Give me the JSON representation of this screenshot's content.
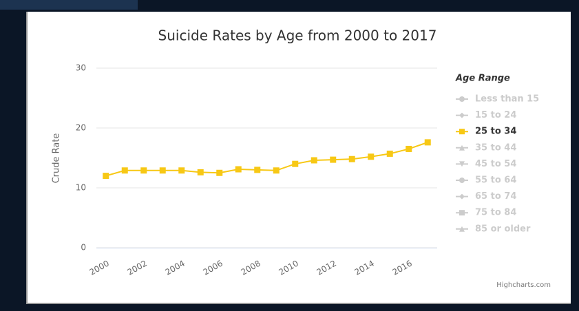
{
  "chart_data": {
    "type": "line",
    "title": "Suicide Rates by Age from 2000 to 2017",
    "y_label": "Crude Rate",
    "credits": "Highcharts.com",
    "x": [
      2000,
      2001,
      2002,
      2003,
      2004,
      2005,
      2006,
      2007,
      2008,
      2009,
      2010,
      2011,
      2012,
      2013,
      2014,
      2015,
      2016,
      2017
    ],
    "xlim": [
      1999.5,
      2017.5
    ],
    "xticks": [
      2000,
      2002,
      2004,
      2006,
      2008,
      2010,
      2012,
      2014,
      2016
    ],
    "ylim": [
      0,
      30
    ],
    "yticks": [
      0,
      10,
      20,
      30
    ],
    "grid": true,
    "legend": {
      "title": "Age Range",
      "position": "right"
    },
    "series": [
      {
        "name": "Less than 15",
        "color": "#cccccc",
        "marker": "circle",
        "visible": false
      },
      {
        "name": "15 to 24",
        "color": "#cccccc",
        "marker": "diamond",
        "visible": false
      },
      {
        "name": "25 to 34",
        "color": "#f7c815",
        "marker": "square",
        "visible": true,
        "values": [
          12.0,
          12.9,
          12.9,
          12.9,
          12.9,
          12.6,
          12.5,
          13.1,
          13.0,
          12.9,
          14.0,
          14.6,
          14.7,
          14.8,
          15.2,
          15.7,
          16.5,
          17.6
        ]
      },
      {
        "name": "35 to 44",
        "color": "#cccccc",
        "marker": "triangle",
        "visible": false
      },
      {
        "name": "45 to 54",
        "color": "#cccccc",
        "marker": "triangle-down",
        "visible": false
      },
      {
        "name": "55 to 64",
        "color": "#cccccc",
        "marker": "circle",
        "visible": false
      },
      {
        "name": "65 to 74",
        "color": "#cccccc",
        "marker": "diamond",
        "visible": false
      },
      {
        "name": "75 to 84",
        "color": "#cccccc",
        "marker": "square",
        "visible": false
      },
      {
        "name": "85 or older",
        "color": "#cccccc",
        "marker": "triangle",
        "visible": false
      }
    ]
  }
}
